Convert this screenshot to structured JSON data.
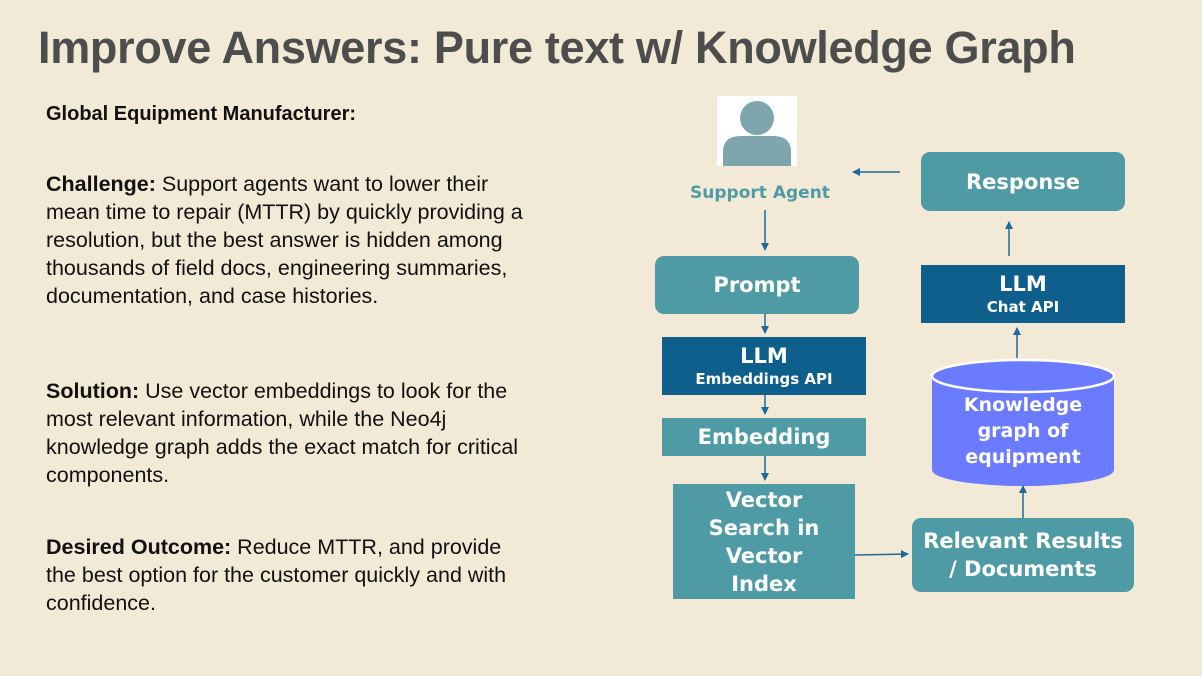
{
  "title": "Improve Answers: Pure text w/ Knowledge Graph",
  "left": {
    "heading": "Global Equipment Manufacturer:",
    "challenge_label": "Challenge:",
    "challenge_text": " Support agents want to lower their mean time to repair (MTTR) by quickly providing a resolution, but the best answer is hidden among thousands of field docs, engineering summaries, documentation, and case histories.",
    "solution_label": "Solution:",
    "solution_text": " Use vector embeddings to look for the most relevant information, while the Neo4j knowledge graph adds the exact match for critical components.",
    "outcome_label": "Desired Outcome:",
    "outcome_text": " Reduce MTTR, and provide the best option for the customer quickly and with confidence."
  },
  "diagram": {
    "agent": {
      "label": "Support Agent",
      "icon": "person-avatar-icon"
    },
    "prompt": "Prompt",
    "llm_embed": {
      "title": "LLM",
      "subtitle": "Embeddings API"
    },
    "embedding": "Embedding",
    "vector_search": "Vector Search in Vector Index",
    "relevant": "Relevant Results / Documents",
    "knowledge_graph": "Knowledge graph of equipment",
    "llm_chat": {
      "title": "LLM",
      "subtitle": "Chat API"
    },
    "response": "Response"
  },
  "colors": {
    "background": "#f2e9d7",
    "teal": "#4f9ba5",
    "dark_blue": "#0f5f8c",
    "database": "#6b7bff",
    "arrow": "#1f6a9a"
  }
}
